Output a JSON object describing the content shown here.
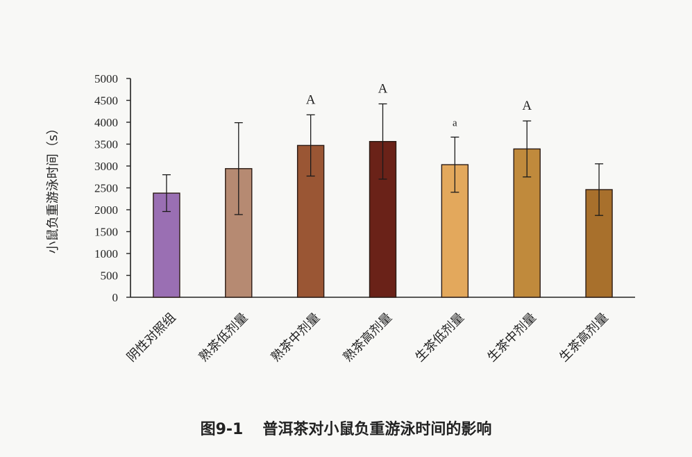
{
  "chart_data": {
    "type": "bar",
    "categories": [
      "阴性对照组",
      "熟茶低剂量",
      "熟茶中剂量",
      "熟茶高剂量",
      "生茶低剂量",
      "生茶中剂量",
      "生茶高剂量"
    ],
    "values": [
      2380,
      2940,
      3470,
      3560,
      3030,
      3390,
      2460
    ],
    "errors": [
      420,
      1050,
      700,
      860,
      630,
      640,
      590
    ],
    "significance": [
      "",
      "",
      "A",
      "A",
      "a",
      "A",
      ""
    ],
    "colors": [
      "#9a6fb3",
      "#b68a72",
      "#9a5634",
      "#6a2218",
      "#e3a85c",
      "#c08a3c",
      "#a8702c"
    ],
    "ylabel": "小鼠负重游泳时间（s）",
    "xlabel": "",
    "ylim": [
      0,
      5000
    ],
    "yticks": [
      0,
      500,
      1000,
      1500,
      2000,
      2500,
      3000,
      3500,
      4000,
      4500,
      5000
    ],
    "grid": false
  },
  "figure": {
    "number": "图9-1",
    "title": "普洱茶对小鼠负重游泳时间的影响"
  }
}
